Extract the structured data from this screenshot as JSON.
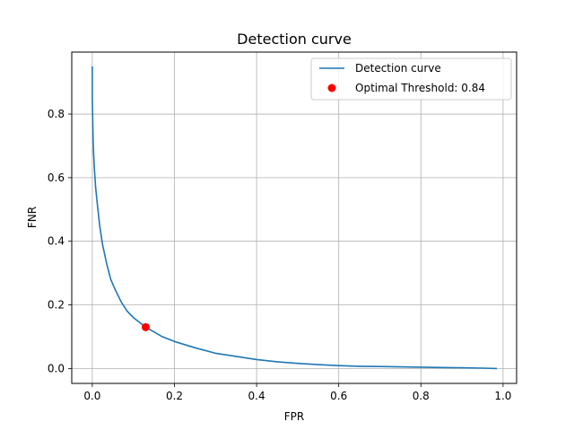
{
  "chart_data": {
    "type": "line",
    "title": "Detection curve",
    "xlabel": "FPR",
    "ylabel": "FNR",
    "xlim": [
      -0.05,
      1.033
    ],
    "ylim": [
      -0.047,
      0.995
    ],
    "xticks": [
      0.0,
      0.2,
      0.4,
      0.6,
      0.8,
      1.0
    ],
    "xtick_labels": [
      "0.0",
      "0.2",
      "0.4",
      "0.6",
      "0.8",
      "1.0"
    ],
    "yticks": [
      0.0,
      0.2,
      0.4,
      0.6,
      0.8
    ],
    "ytick_labels": [
      "0.0",
      "0.2",
      "0.4",
      "0.6",
      "0.8"
    ],
    "grid": true,
    "legend_position": "top-right",
    "series": [
      {
        "name": "Detection curve",
        "color": "#1f77b4",
        "x": [
          0.0,
          0.0,
          0.001,
          0.002,
          0.003,
          0.005,
          0.008,
          0.012,
          0.018,
          0.025,
          0.035,
          0.045,
          0.055,
          0.07,
          0.085,
          0.1,
          0.115,
          0.13,
          0.15,
          0.17,
          0.2,
          0.25,
          0.3,
          0.35,
          0.4,
          0.45,
          0.5,
          0.55,
          0.6,
          0.65,
          0.7,
          0.75,
          0.8,
          0.85,
          0.9,
          0.95,
          0.985
        ],
        "y": [
          0.95,
          0.85,
          0.78,
          0.72,
          0.68,
          0.63,
          0.57,
          0.52,
          0.45,
          0.39,
          0.33,
          0.28,
          0.25,
          0.21,
          0.18,
          0.16,
          0.145,
          0.13,
          0.115,
          0.1,
          0.085,
          0.065,
          0.048,
          0.038,
          0.028,
          0.021,
          0.016,
          0.012,
          0.009,
          0.007,
          0.006,
          0.005,
          0.004,
          0.003,
          0.002,
          0.001,
          0.0
        ]
      },
      {
        "name": "Optimal Threshold: 0.84",
        "color": "#ff0000",
        "marker": "circle",
        "x": [
          0.13
        ],
        "y": [
          0.13
        ]
      }
    ]
  }
}
